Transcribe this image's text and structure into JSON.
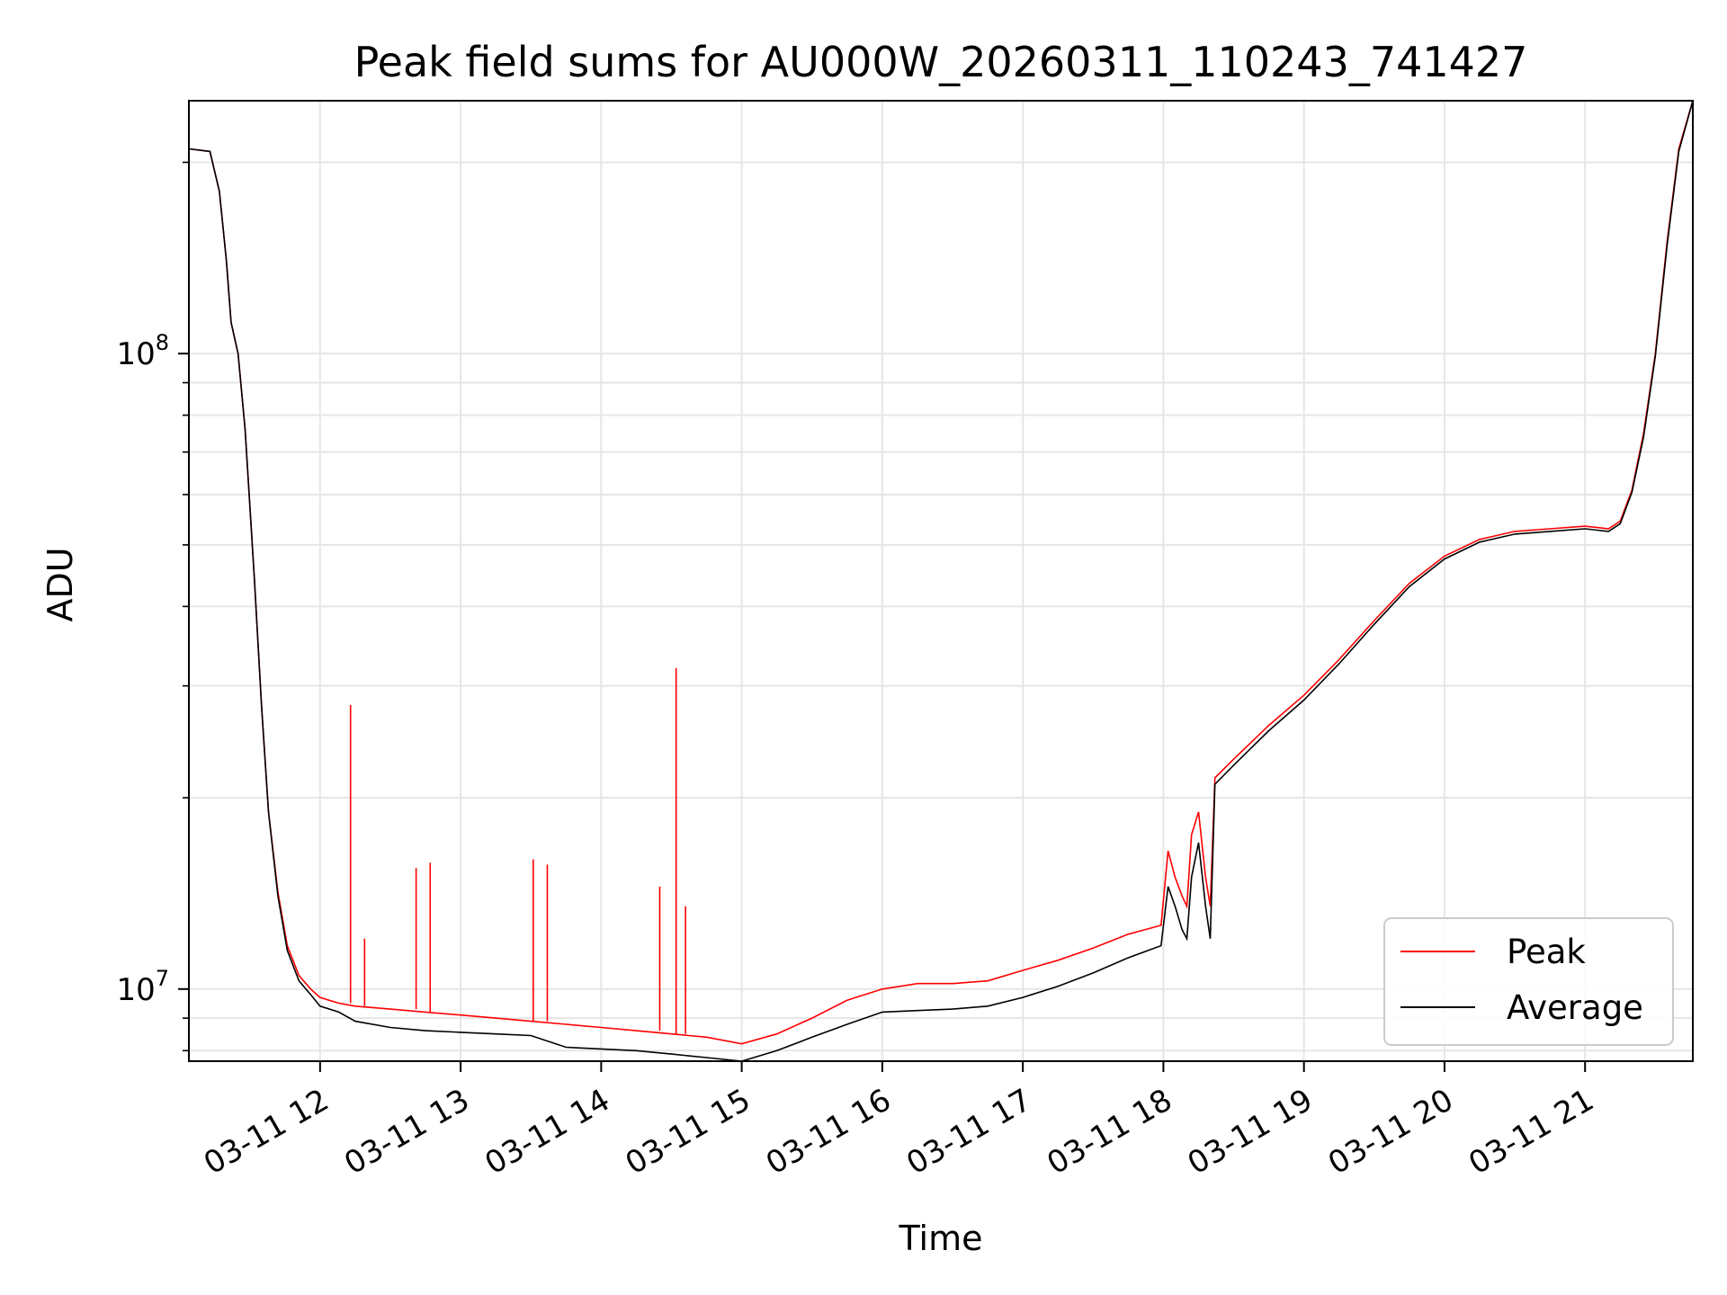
{
  "chart_data": {
    "type": "line",
    "title": "Peak field sums for AU000W_20260311_110243_741427",
    "xlabel": "Time",
    "ylabel": "ADU",
    "yscale": "log",
    "ylim": [
      7700000,
      250000000
    ],
    "xlim": [
      "03-11 11:04",
      "03-11 21:46"
    ],
    "grid": true,
    "legend_position": "lower-right",
    "x_ticks": [
      "03-11 12",
      "03-11 13",
      "03-11 14",
      "03-11 15",
      "03-11 16",
      "03-11 17",
      "03-11 18",
      "03-11 19",
      "03-11 20",
      "03-11 21"
    ],
    "y_ticks": [
      {
        "base": "10",
        "exp": "7",
        "value": 10000000
      },
      {
        "base": "10",
        "exp": "8",
        "value": 100000000
      }
    ],
    "x": [
      "03-11 11:04",
      "03-11 11:13",
      "03-11 11:17",
      "03-11 11:20",
      "03-11 11:22",
      "03-11 11:25",
      "03-11 11:28",
      "03-11 11:32",
      "03-11 11:35",
      "03-11 11:38",
      "03-11 11:42",
      "03-11 11:46",
      "03-11 11:51",
      "03-11 11:56",
      "03-11 12:00",
      "03-11 12:08",
      "03-11 12:15",
      "03-11 12:30",
      "03-11 12:45",
      "03-11 13:00",
      "03-11 13:15",
      "03-11 13:30",
      "03-11 13:45",
      "03-11 14:00",
      "03-11 14:15",
      "03-11 14:30",
      "03-11 14:45",
      "03-11 15:00",
      "03-11 15:15",
      "03-11 15:30",
      "03-11 15:45",
      "03-11 16:00",
      "03-11 16:15",
      "03-11 16:30",
      "03-11 16:45",
      "03-11 17:00",
      "03-11 17:15",
      "03-11 17:30",
      "03-11 17:45",
      "03-11 17:59",
      "03-11 18:02",
      "03-11 18:05",
      "03-11 18:08",
      "03-11 18:10",
      "03-11 18:12",
      "03-11 18:15",
      "03-11 18:18",
      "03-11 18:20",
      "03-11 18:22",
      "03-11 18:30",
      "03-11 18:45",
      "03-11 19:00",
      "03-11 19:15",
      "03-11 19:30",
      "03-11 19:45",
      "03-11 20:00",
      "03-11 20:15",
      "03-11 20:30",
      "03-11 20:45",
      "03-11 21:00",
      "03-11 21:10",
      "03-11 21:15",
      "03-11 21:20",
      "03-11 21:25",
      "03-11 21:30",
      "03-11 21:35",
      "03-11 21:40",
      "03-11 21:46"
    ],
    "series": [
      {
        "name": "Peak",
        "color": "#ff0000",
        "values": [
          210000000,
          208000000,
          180000000,
          140000000,
          112000000,
          100000000,
          76000000,
          44000000,
          28000000,
          19000000,
          14200000,
          11700000,
          10500000,
          10000000,
          9700000,
          9500000,
          9400000,
          9300000,
          9200000,
          9100000,
          9000000,
          8900000,
          8800000,
          8700000,
          8600000,
          8500000,
          8400000,
          8200000,
          8500000,
          9000000,
          9600000,
          10000000,
          10200000,
          10200000,
          10300000,
          10700000,
          11100000,
          11600000,
          12200000,
          12600000,
          16500000,
          15000000,
          14000000,
          13500000,
          17500000,
          19000000,
          15000000,
          13500000,
          21500000,
          23000000,
          26000000,
          29000000,
          33000000,
          38000000,
          43500000,
          48000000,
          51000000,
          52500000,
          53000000,
          53500000,
          53000000,
          54500000,
          61000000,
          75000000,
          100000000,
          150000000,
          210000000,
          250000000
        ]
      },
      {
        "name": "Average",
        "color": "#000000",
        "values": [
          210000000,
          208000000,
          180000000,
          140000000,
          112000000,
          100000000,
          76000000,
          44000000,
          28000000,
          19000000,
          14000000,
          11500000,
          10300000,
          9800000,
          9400000,
          9200000,
          8900000,
          8700000,
          8600000,
          8550000,
          8500000,
          8450000,
          8100000,
          8050000,
          8000000,
          7900000,
          7800000,
          7700000,
          8000000,
          8400000,
          8800000,
          9200000,
          9250000,
          9300000,
          9400000,
          9700000,
          10100000,
          10600000,
          11200000,
          11700000,
          14500000,
          13500000,
          12400000,
          12000000,
          15000000,
          17000000,
          13500000,
          12000000,
          21000000,
          22500000,
          25500000,
          28500000,
          32500000,
          37500000,
          43000000,
          47500000,
          50500000,
          52000000,
          52500000,
          53000000,
          52500000,
          54000000,
          60500000,
          74000000,
          99000000,
          148000000,
          208000000,
          250000000
        ]
      }
    ],
    "peak_spikes": [
      {
        "x": "03-11 12:13",
        "value": 28000000
      },
      {
        "x": "03-11 12:19",
        "value": 12000000
      },
      {
        "x": "03-11 12:41",
        "value": 15500000
      },
      {
        "x": "03-11 12:47",
        "value": 15800000
      },
      {
        "x": "03-11 13:31",
        "value": 16000000
      },
      {
        "x": "03-11 13:37",
        "value": 15700000
      },
      {
        "x": "03-11 14:25",
        "value": 14500000
      },
      {
        "x": "03-11 14:32",
        "value": 32000000
      },
      {
        "x": "03-11 14:36",
        "value": 13500000
      }
    ]
  }
}
